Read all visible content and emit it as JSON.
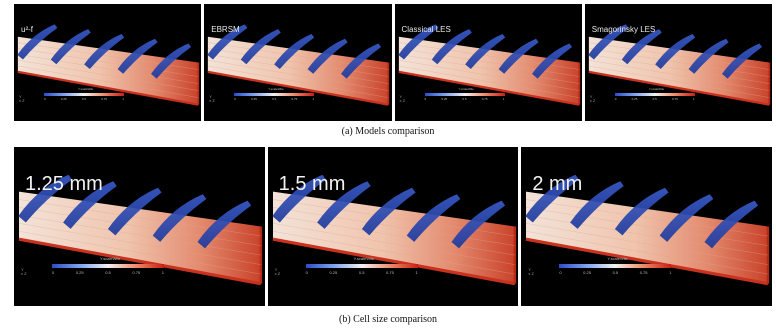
{
  "rows": [
    {
      "panels": [
        {
          "label": "u²-f"
        },
        {
          "label": "EBRSM"
        },
        {
          "label": "Classical LES"
        },
        {
          "label": "Smagorinsky LES"
        }
      ],
      "caption": "(a) Models comparison"
    },
    {
      "panels": [
        {
          "label": "1.25 mm"
        },
        {
          "label": "1.5 mm"
        },
        {
          "label": "2 mm"
        }
      ],
      "caption": "(b) Cell size comparison"
    }
  ],
  "colorbar": {
    "title": "Y.scaleWile",
    "ticks": [
      "0",
      "0.25",
      "0.5",
      "0.75",
      "1"
    ],
    "colors": [
      "#2b4cc7",
      "#7fa3f0",
      "#f2f2f2",
      "#f08a6a",
      "#c81e14"
    ]
  },
  "axes_glyph": {
    "line1": "Y",
    "line2": "x Z"
  }
}
